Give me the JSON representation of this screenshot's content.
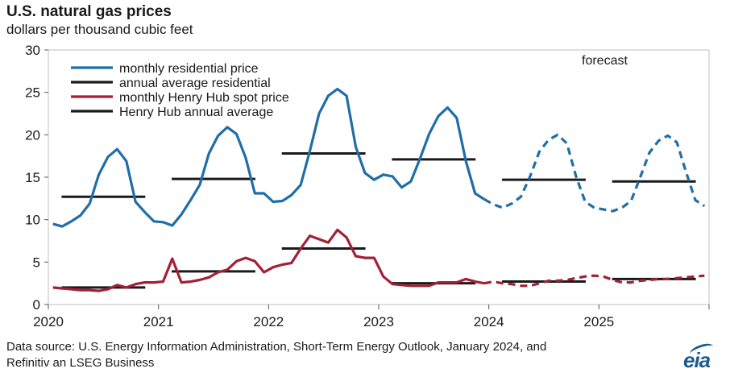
{
  "header": {
    "title": "U.S. natural gas prices",
    "subtitle": "dollars per thousand cubic feet"
  },
  "footer": {
    "source_line1": "Data source: U.S. Energy Information Administration, Short-Term Energy Outlook, January 2024, and",
    "source_line2": "Refinitiv an LSEG Business",
    "logo": "eia"
  },
  "colors": {
    "residential": "#1f6ea8",
    "henry_hub": "#a32035",
    "average": "#1a1a1a",
    "frame": "#bfbfbf"
  },
  "chart_data": {
    "type": "line",
    "title": "U.S. natural gas prices",
    "ylabel": "dollars per thousand cubic feet",
    "xlim": [
      2020,
      2026
    ],
    "ylim": [
      0,
      30
    ],
    "yticks": [
      0,
      5,
      10,
      15,
      20,
      25,
      30
    ],
    "xticks": [
      2020,
      2021,
      2022,
      2023,
      2024,
      2025
    ],
    "annotation": "forecast",
    "forecast_start": 2024,
    "legend": {
      "position": "top-left",
      "entries": [
        "monthly residential price",
        "annual average residential",
        "monthly Henry Hub spot price",
        "Henry Hub annual average"
      ]
    },
    "series": [
      {
        "name": "monthly residential price",
        "color_key": "residential",
        "start_year": 2020,
        "values": [
          9.5,
          9.2,
          9.8,
          10.5,
          11.9,
          15.3,
          17.4,
          18.3,
          16.9,
          12.1,
          10.9,
          9.8,
          9.7,
          9.3,
          10.6,
          12.3,
          14.1,
          17.8,
          19.9,
          20.9,
          20.1,
          17.3,
          13.1,
          13.1,
          12.1,
          12.2,
          12.9,
          14.1,
          18.1,
          22.5,
          24.6,
          25.4,
          24.6,
          18.6,
          15.5,
          14.7,
          15.3,
          15.1,
          13.8,
          14.5,
          17.2,
          20.1,
          22.2,
          23.2,
          22.0,
          16.9,
          13.1,
          12.4,
          11.8,
          11.4,
          11.9,
          12.7,
          15.1,
          18.0,
          19.4,
          20.0,
          19.0,
          15.1,
          12.1,
          11.4,
          11.2,
          11.0,
          11.4,
          12.2,
          15.0,
          17.9,
          19.3,
          19.9,
          19.1,
          15.6,
          12.3,
          11.6
        ]
      },
      {
        "name": "annual average residential",
        "color_key": "average",
        "values": [
          12.7,
          14.8,
          17.8,
          17.1,
          14.7,
          14.5
        ]
      },
      {
        "name": "monthly Henry Hub spot price",
        "color_key": "henry_hub",
        "start_year": 2020,
        "values": [
          2.0,
          1.9,
          1.8,
          1.7,
          1.7,
          1.6,
          1.8,
          2.3,
          2.0,
          2.4,
          2.6,
          2.6,
          2.7,
          5.4,
          2.6,
          2.7,
          2.9,
          3.2,
          3.8,
          4.1,
          5.1,
          5.5,
          5.1,
          3.8,
          4.4,
          4.7,
          4.9,
          6.6,
          8.1,
          7.7,
          7.3,
          8.8,
          7.9,
          5.7,
          5.5,
          5.5,
          3.3,
          2.4,
          2.3,
          2.2,
          2.2,
          2.2,
          2.6,
          2.6,
          2.6,
          3.0,
          2.7,
          2.5,
          2.7,
          2.5,
          2.4,
          2.2,
          2.2,
          2.5,
          2.8,
          2.8,
          2.9,
          3.1,
          3.3,
          3.4,
          3.3,
          2.9,
          2.6,
          2.6,
          2.8,
          2.9,
          3.0,
          3.0,
          3.1,
          3.2,
          3.3,
          3.4
        ]
      },
      {
        "name": "Henry Hub annual average",
        "color_key": "average",
        "values": [
          2.0,
          3.9,
          6.6,
          2.5,
          2.7,
          3.0
        ]
      }
    ]
  }
}
